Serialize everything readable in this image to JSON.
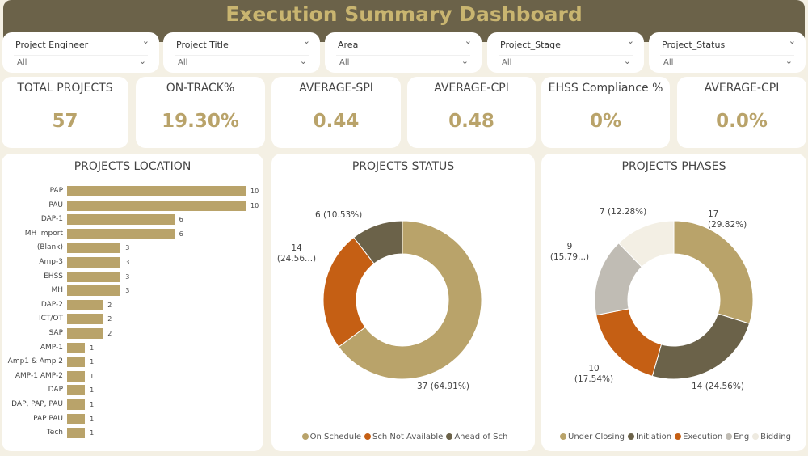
{
  "header": {
    "title": "Execution Summary Dashboard"
  },
  "filters": [
    {
      "label": "Project Engineer",
      "value": "All"
    },
    {
      "label": "Project Title",
      "value": "All"
    },
    {
      "label": "Area",
      "value": "All"
    },
    {
      "label": "Project_Stage",
      "value": "All"
    },
    {
      "label": "Project_Status",
      "value": "All"
    }
  ],
  "kpis": [
    {
      "label": "TOTAL PROJECTS",
      "value": "57"
    },
    {
      "label": "ON-TRACK%",
      "value": "19.30%"
    },
    {
      "label": "AVERAGE-SPI",
      "value": "0.44"
    },
    {
      "label": "AVERAGE-CPI",
      "value": "0.48"
    },
    {
      "label": "EHSS Compliance %",
      "value": "0%"
    },
    {
      "label": "AVERAGE-CPI",
      "value": "0.0%"
    }
  ],
  "colors": {
    "gold": "#b9a36a",
    "dark": "#6b6249",
    "orange": "#c55f14",
    "grey": "#c0bcb4",
    "cream": "#f3efe4"
  },
  "chart_data": [
    {
      "type": "bar",
      "orientation": "horizontal",
      "title": "PROJECTS LOCATION",
      "categories": [
        "PAP",
        "PAU",
        "DAP-1",
        "MH Import",
        "(Blank)",
        "Amp-3",
        "EHSS",
        "MH",
        "DAP-2",
        "ICT/OT",
        "SAP",
        "AMP-1",
        "Amp1 & Amp 2",
        "AMP-1 AMP-2",
        "DAP",
        "DAP, PAP, PAU",
        "PAP PAU",
        "Tech"
      ],
      "values": [
        10,
        10,
        6,
        6,
        3,
        3,
        3,
        3,
        2,
        2,
        2,
        1,
        1,
        1,
        1,
        1,
        1,
        1
      ]
    },
    {
      "type": "pie",
      "donut": true,
      "title": "PROJECTS STATUS",
      "series": [
        {
          "name": "On Schedule",
          "value": 37,
          "label": "37 (64.91%)",
          "color": "#b9a36a"
        },
        {
          "name": "Sch Not Available",
          "value": 14,
          "label": "14 (24.56...)",
          "color": "#c55f14"
        },
        {
          "name": "Ahead of Sch",
          "value": 6,
          "label": "6 (10.53%)",
          "color": "#6b6249"
        }
      ]
    },
    {
      "type": "pie",
      "donut": true,
      "title": "PROJECTS PHASES",
      "series": [
        {
          "name": "Under Closing",
          "value": 17,
          "label": "17 (29.82%)",
          "color": "#b9a36a"
        },
        {
          "name": "Initiation",
          "value": 14,
          "label": "14 (24.56%)",
          "color": "#6b6249"
        },
        {
          "name": "Execution",
          "value": 10,
          "label": "10 (17.54%)",
          "color": "#c55f14"
        },
        {
          "name": "Eng",
          "value": 9,
          "label": "9 (15.79...)",
          "color": "#c0bcb4"
        },
        {
          "name": "Bidding",
          "value": 7,
          "label": "7 (12.28%)",
          "color": "#f3efe4"
        }
      ]
    }
  ]
}
